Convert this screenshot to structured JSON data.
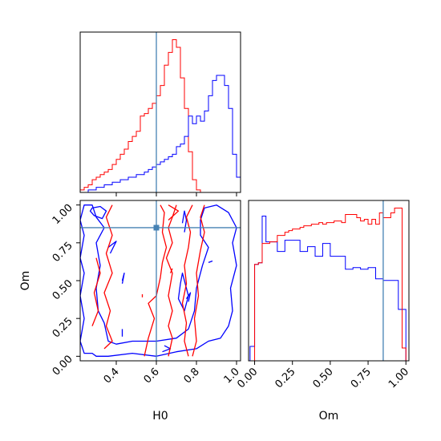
{
  "chart_data": [
    {
      "panel": "H0-marginal",
      "type": "histogram",
      "xlim": [
        0.22,
        1.02
      ],
      "series": [
        {
          "color": "#ff0000",
          "edges": [
            0.22,
            0.24,
            0.26,
            0.28,
            0.3,
            0.32,
            0.34,
            0.36,
            0.38,
            0.4,
            0.42,
            0.44,
            0.46,
            0.48,
            0.5,
            0.52,
            0.54,
            0.56,
            0.58,
            0.6,
            0.62,
            0.64,
            0.66,
            0.68,
            0.7,
            0.72,
            0.74,
            0.76,
            0.78,
            0.8,
            0.82
          ],
          "values": [
            1,
            2,
            3,
            5,
            6,
            7,
            8,
            9,
            11,
            13,
            15,
            17,
            20,
            22,
            24,
            30,
            31,
            33,
            35,
            38,
            42,
            50,
            55,
            60,
            57,
            45,
            33,
            16,
            5,
            1
          ]
        },
        {
          "color": "#0000ff",
          "edges": [
            0.22,
            0.24,
            0.26,
            0.28,
            0.3,
            0.32,
            0.34,
            0.36,
            0.38,
            0.4,
            0.42,
            0.44,
            0.46,
            0.48,
            0.5,
            0.52,
            0.54,
            0.56,
            0.58,
            0.6,
            0.62,
            0.64,
            0.66,
            0.68,
            0.7,
            0.72,
            0.74,
            0.76,
            0.78,
            0.8,
            0.82,
            0.84,
            0.86,
            0.88,
            0.9,
            0.92,
            0.94,
            0.96,
            0.98,
            1.0,
            1.02
          ],
          "values": [
            0,
            0,
            1,
            1,
            2,
            2,
            3,
            3,
            4,
            4,
            5,
            5,
            6,
            6,
            7,
            7,
            8,
            9,
            10,
            11,
            12,
            13,
            14,
            15,
            18,
            19,
            22,
            30,
            27,
            30,
            28,
            32,
            38,
            44,
            46,
            46,
            42,
            33,
            15,
            6
          ]
        }
      ],
      "truth": 0.6
    },
    {
      "panel": "Om-H0-joint",
      "type": "contour",
      "xlabel": "H0",
      "ylabel": "Om",
      "xlim": [
        0.22,
        1.02
      ],
      "ylim": [
        -0.03,
        1.03
      ],
      "xticks": [
        "0.4",
        "0.6",
        "0.8",
        "1.0"
      ],
      "yticks": [
        "0.00",
        "0.25",
        "0.50",
        "0.75",
        "1.00"
      ],
      "truth": {
        "x": 0.6,
        "y": 0.85
      },
      "contours": [
        {
          "color": "#0000ff",
          "points": [
            [
              0.28,
              0.02
            ],
            [
              0.3,
              0.0
            ],
            [
              0.36,
              0.0
            ],
            [
              0.48,
              0.02
            ],
            [
              0.6,
              0.0
            ],
            [
              0.7,
              0.03
            ],
            [
              0.8,
              0.05
            ],
            [
              0.86,
              0.1
            ],
            [
              0.92,
              0.12
            ],
            [
              0.96,
              0.2
            ],
            [
              0.98,
              0.3
            ],
            [
              0.97,
              0.45
            ],
            [
              1.0,
              0.6
            ],
            [
              0.98,
              0.75
            ],
            [
              1.0,
              0.85
            ],
            [
              0.96,
              0.95
            ],
            [
              0.9,
              1.0
            ],
            [
              0.84,
              0.98
            ],
            [
              0.82,
              0.9
            ],
            [
              0.82,
              0.8
            ],
            [
              0.86,
              0.72
            ],
            [
              0.83,
              0.6
            ],
            [
              0.8,
              0.45
            ],
            [
              0.79,
              0.3
            ],
            [
              0.76,
              0.18
            ],
            [
              0.7,
              0.12
            ],
            [
              0.6,
              0.1
            ],
            [
              0.48,
              0.1
            ],
            [
              0.4,
              0.08
            ],
            [
              0.36,
              0.1
            ],
            [
              0.34,
              0.22
            ],
            [
              0.31,
              0.3
            ],
            [
              0.3,
              0.45
            ],
            [
              0.32,
              0.6
            ],
            [
              0.3,
              0.75
            ],
            [
              0.34,
              0.85
            ],
            [
              0.3,
              0.92
            ],
            [
              0.28,
              1.0
            ],
            [
              0.24,
              1.0
            ],
            [
              0.22,
              0.9
            ],
            [
              0.24,
              0.8
            ],
            [
              0.22,
              0.65
            ],
            [
              0.24,
              0.55
            ],
            [
              0.22,
              0.4
            ],
            [
              0.24,
              0.25
            ],
            [
              0.22,
              0.1
            ],
            [
              0.24,
              0.02
            ]
          ]
        },
        {
          "color": "#0000ff",
          "points": [
            [
              0.28,
              0.98
            ],
            [
              0.32,
              0.99
            ],
            [
              0.35,
              0.96
            ],
            [
              0.33,
              0.91
            ],
            [
              0.29,
              0.93
            ],
            [
              0.27,
              0.96
            ]
          ]
        },
        {
          "color": "#0000ff",
          "points": [
            [
              0.74,
              0.3
            ],
            [
              0.76,
              0.4
            ],
            [
              0.73,
              0.55
            ],
            [
              0.72,
              0.48
            ],
            [
              0.71,
              0.38
            ]
          ]
        },
        {
          "color": "#0000ff",
          "points": [
            [
              0.74,
              0.82
            ],
            [
              0.75,
              0.9
            ],
            [
              0.74,
              0.96
            ],
            [
              0.73,
              0.88
            ]
          ]
        },
        {
          "color": "#0000ff",
          "points": [
            [
              0.36,
              0.72
            ],
            [
              0.4,
              0.76
            ],
            [
              0.37,
              0.68
            ]
          ]
        },
        {
          "color": "#0000ff",
          "points": [
            [
              0.43,
              0.48
            ],
            [
              0.44,
              0.55
            ],
            [
              0.43,
              0.5
            ]
          ]
        },
        {
          "color": "#0000ff",
          "points": [
            [
              0.43,
              0.13
            ],
            [
              0.43,
              0.18
            ]
          ]
        },
        {
          "color": "#0000ff",
          "points": [
            [
              0.63,
              0.03
            ],
            [
              0.67,
              0.05
            ],
            [
              0.64,
              0.07
            ]
          ]
        },
        {
          "color": "#0000ff",
          "points": [
            [
              0.75,
              0.38
            ],
            [
              0.77,
              0.42
            ],
            [
              0.76,
              0.36
            ]
          ]
        },
        {
          "color": "#0000ff",
          "points": [
            [
              0.86,
              0.62
            ],
            [
              0.88,
              0.63
            ]
          ]
        },
        {
          "color": "#ff0000",
          "points": [
            [
              0.34,
              0.05
            ],
            [
              0.38,
              0.1
            ],
            [
              0.35,
              0.2
            ],
            [
              0.37,
              0.3
            ],
            [
              0.34,
              0.42
            ],
            [
              0.38,
              0.55
            ],
            [
              0.35,
              0.68
            ],
            [
              0.38,
              0.8
            ],
            [
              0.35,
              0.92
            ],
            [
              0.38,
              1.0
            ]
          ]
        },
        {
          "color": "#ff0000",
          "points": [
            [
              0.28,
              0.2
            ],
            [
              0.31,
              0.3
            ],
            [
              0.29,
              0.42
            ],
            [
              0.32,
              0.55
            ],
            [
              0.3,
              0.65
            ]
          ]
        },
        {
          "color": "#ff0000",
          "points": [
            [
              0.66,
              0.0
            ],
            [
              0.68,
              0.12
            ],
            [
              0.66,
              0.2
            ],
            [
              0.68,
              0.3
            ],
            [
              0.66,
              0.4
            ],
            [
              0.68,
              0.55
            ],
            [
              0.65,
              0.65
            ],
            [
              0.68,
              0.75
            ],
            [
              0.66,
              0.85
            ],
            [
              0.68,
              0.92
            ],
            [
              0.7,
              1.0
            ]
          ]
        },
        {
          "color": "#ff0000",
          "points": [
            [
              0.66,
              0.9
            ],
            [
              0.71,
              0.96
            ],
            [
              0.66,
              1.0
            ]
          ]
        },
        {
          "color": "#ff0000",
          "points": [
            [
              0.54,
              0.0
            ],
            [
              0.56,
              0.12
            ],
            [
              0.59,
              0.25
            ],
            [
              0.56,
              0.35
            ],
            [
              0.6,
              0.4
            ],
            [
              0.62,
              0.52
            ],
            [
              0.63,
              0.62
            ],
            [
              0.65,
              0.72
            ],
            [
              0.63,
              0.82
            ],
            [
              0.64,
              0.95
            ],
            [
              0.62,
              1.0
            ]
          ]
        },
        {
          "color": "#ff0000",
          "points": [
            [
              0.78,
              0.0
            ],
            [
              0.8,
              0.1
            ],
            [
              0.79,
              0.25
            ],
            [
              0.81,
              0.4
            ],
            [
              0.8,
              0.55
            ],
            [
              0.82,
              0.7
            ],
            [
              0.84,
              0.82
            ],
            [
              0.82,
              0.92
            ],
            [
              0.84,
              1.0
            ]
          ]
        },
        {
          "color": "#ff0000",
          "points": [
            [
              0.76,
              0.0
            ],
            [
              0.74,
              0.1
            ],
            [
              0.75,
              0.22
            ],
            [
              0.73,
              0.35
            ],
            [
              0.75,
              0.48
            ],
            [
              0.74,
              0.6
            ],
            [
              0.76,
              0.72
            ],
            [
              0.77,
              0.82
            ],
            [
              0.75,
              0.92
            ],
            [
              0.78,
              1.0
            ]
          ]
        },
        {
          "color": "#ff0000",
          "points": [
            [
              0.67,
              0.55
            ],
            [
              0.68,
              0.58
            ]
          ]
        },
        {
          "color": "#ff0000",
          "points": [
            [
              0.53,
              0.39
            ],
            [
              0.53,
              0.41
            ]
          ]
        }
      ]
    },
    {
      "panel": "Om-marginal",
      "type": "histogram",
      "xlabel": "Om",
      "xlim": [
        -0.04,
        1.02
      ],
      "xticks": [
        "0.00",
        "0.25",
        "0.50",
        "0.75",
        "1.00"
      ],
      "series": [
        {
          "color": "#0000ff",
          "edges": [
            -0.03,
            0.0,
            0.025,
            0.05,
            0.075,
            0.1,
            0.125,
            0.15,
            0.175,
            0.2,
            0.225,
            0.25,
            0.275,
            0.3,
            0.325,
            0.35,
            0.375,
            0.4,
            0.425,
            0.45,
            0.475,
            0.5,
            0.525,
            0.55,
            0.575,
            0.6,
            0.625,
            0.65,
            0.675,
            0.7,
            0.725,
            0.75,
            0.775,
            0.8,
            0.825,
            0.85,
            0.875,
            0.9,
            0.925,
            0.95,
            0.975,
            1.0
          ],
          "values": [
            9,
            60,
            61,
            90,
            74,
            74,
            74,
            68,
            68,
            75,
            75,
            75,
            75,
            68,
            68,
            71,
            71,
            65,
            65,
            73,
            73,
            65,
            65,
            65,
            65,
            57,
            57,
            58,
            58,
            57,
            57,
            58,
            58,
            51,
            51,
            50,
            50,
            50,
            50,
            32,
            32
          ]
        },
        {
          "color": "#ff0000",
          "edges": [
            0.0,
            0.025,
            0.05,
            0.075,
            0.1,
            0.125,
            0.15,
            0.175,
            0.2,
            0.225,
            0.25,
            0.275,
            0.3,
            0.325,
            0.35,
            0.375,
            0.4,
            0.425,
            0.45,
            0.475,
            0.5,
            0.525,
            0.55,
            0.575,
            0.6,
            0.625,
            0.65,
            0.675,
            0.7,
            0.725,
            0.75,
            0.775,
            0.8,
            0.825,
            0.85,
            0.875,
            0.9,
            0.925,
            0.95,
            0.975,
            1.0
          ],
          "values": [
            60,
            61,
            73,
            73,
            74,
            74,
            78,
            78,
            80,
            81,
            82,
            82,
            83,
            84,
            84,
            85,
            85,
            86,
            85,
            86,
            86,
            87,
            87,
            86,
            91,
            91,
            91,
            89,
            87,
            88,
            85,
            88,
            85,
            92,
            89,
            89,
            92,
            95,
            95,
            8
          ]
        }
      ],
      "truth": 0.85
    }
  ]
}
